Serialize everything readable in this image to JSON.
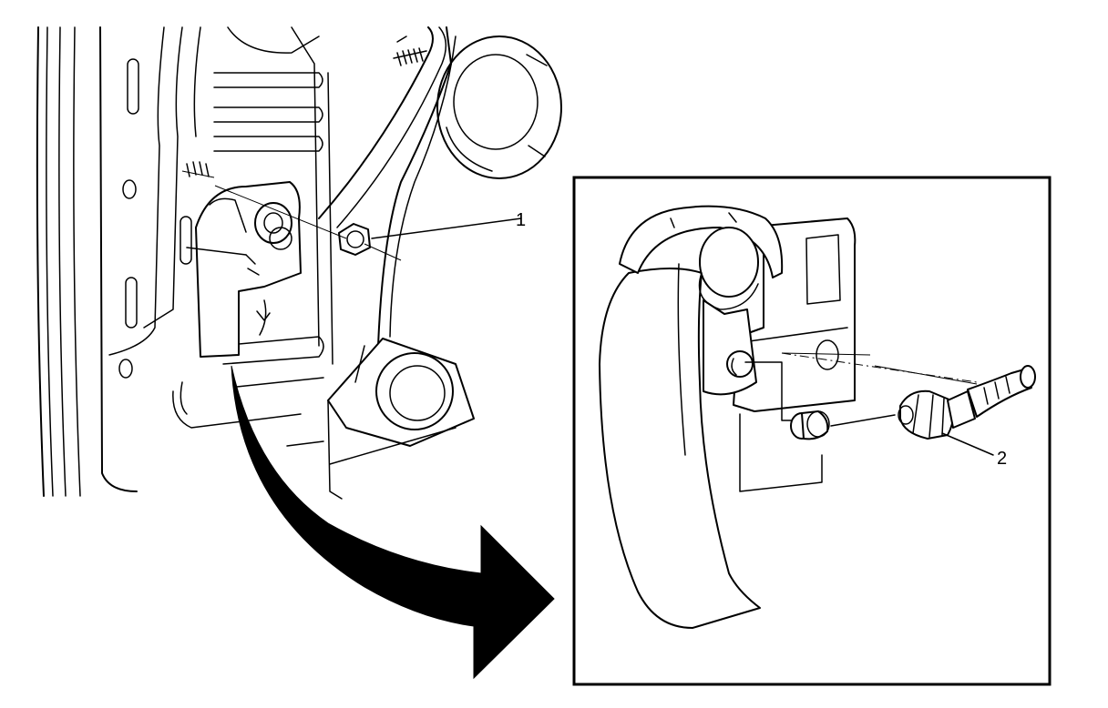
{
  "callouts": [
    {
      "label": "1"
    },
    {
      "label": "2"
    }
  ],
  "colors": {
    "line": "#000000",
    "background": "#ffffff"
  }
}
